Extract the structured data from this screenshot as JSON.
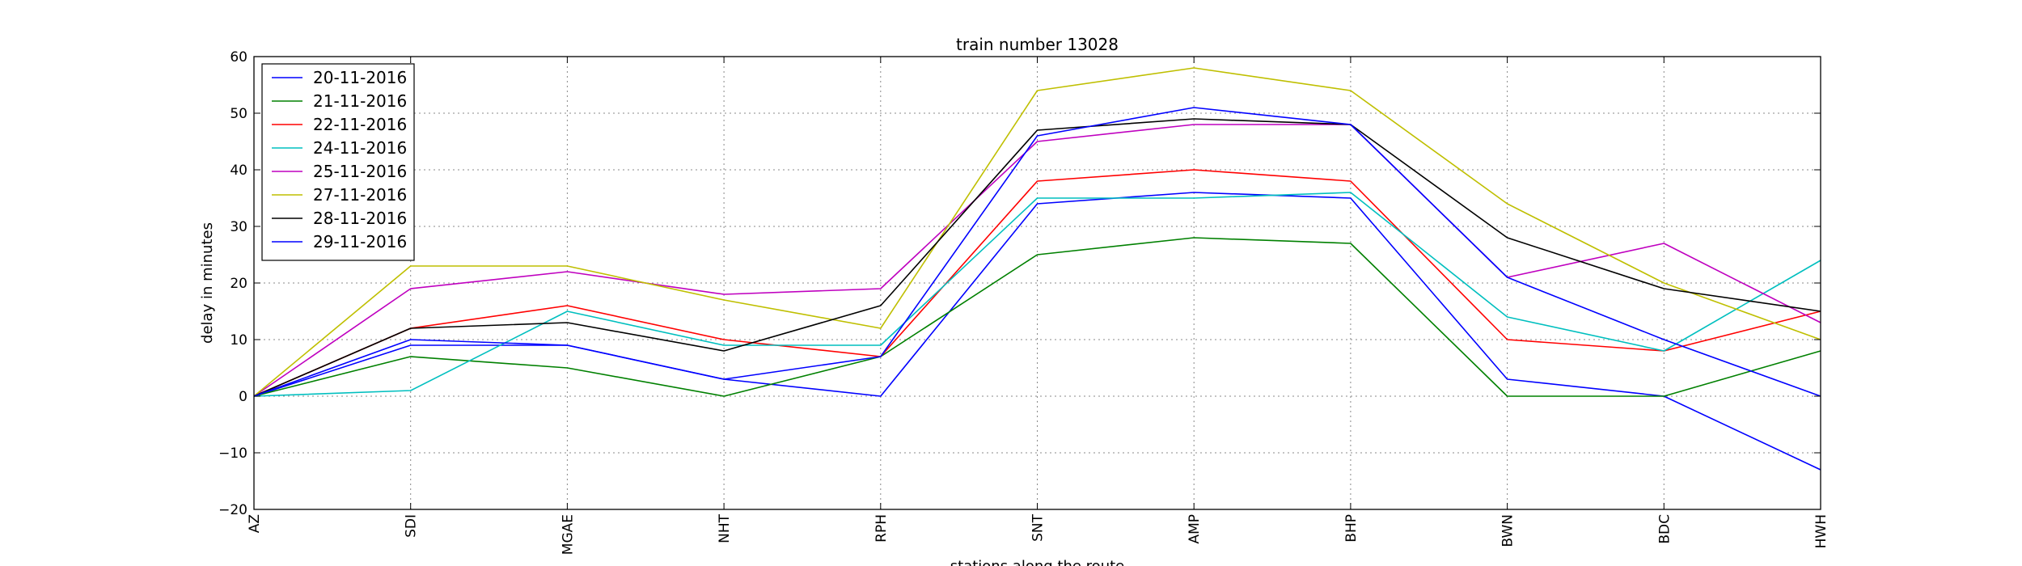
{
  "chart_data": {
    "type": "line",
    "title": "train number 13028",
    "xlabel": "stations along the route",
    "ylabel": "delay in minutes",
    "categories": [
      "AZ",
      "SDI",
      "MGAE",
      "NHT",
      "RPH",
      "SNT",
      "AMP",
      "BHP",
      "BWN",
      "BDC",
      "HWH"
    ],
    "ylim": [
      -20,
      60
    ],
    "yticks": [
      -20,
      -10,
      0,
      10,
      20,
      30,
      40,
      50,
      60
    ],
    "grid": true,
    "legend_position": "top-left",
    "series": [
      {
        "name": "20-11-2016",
        "color": "#0000ff",
        "values": [
          0,
          9,
          9,
          3,
          0,
          34,
          36,
          35,
          3,
          0,
          -13
        ]
      },
      {
        "name": "21-11-2016",
        "color": "#008000",
        "values": [
          0,
          7,
          5,
          0,
          7,
          25,
          28,
          27,
          0,
          0,
          8
        ]
      },
      {
        "name": "22-11-2016",
        "color": "#ff0000",
        "values": [
          0,
          12,
          16,
          10,
          7,
          38,
          40,
          38,
          10,
          8,
          15
        ]
      },
      {
        "name": "24-11-2016",
        "color": "#00bfbf",
        "values": [
          0,
          1,
          15,
          9,
          9,
          35,
          35,
          36,
          14,
          8,
          24
        ]
      },
      {
        "name": "25-11-2016",
        "color": "#bf00bf",
        "values": [
          0,
          19,
          22,
          18,
          19,
          45,
          48,
          48,
          21,
          27,
          13
        ]
      },
      {
        "name": "27-11-2016",
        "color": "#bfbf00",
        "values": [
          0,
          23,
          23,
          17,
          12,
          54,
          58,
          54,
          34,
          20,
          10
        ]
      },
      {
        "name": "28-11-2016",
        "color": "#000000",
        "values": [
          0,
          12,
          13,
          8,
          16,
          47,
          49,
          48,
          28,
          19,
          15
        ]
      },
      {
        "name": "29-11-2016",
        "color": "#0000ff",
        "values": [
          0,
          10,
          9,
          3,
          7,
          46,
          51,
          48,
          21,
          10,
          0
        ]
      }
    ]
  }
}
